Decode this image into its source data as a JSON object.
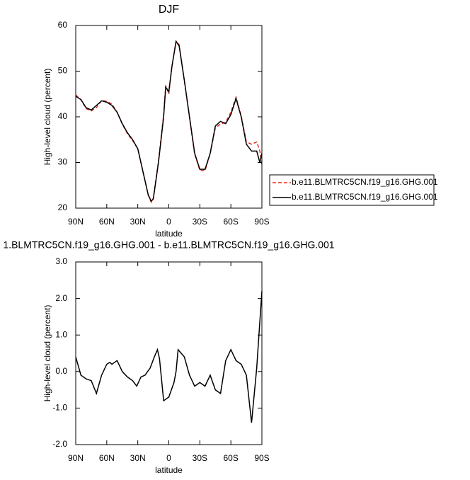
{
  "chart_data": [
    {
      "type": "line",
      "title": "DJF",
      "xlabel": "latitude",
      "ylabel": "High-level cloud (percent)",
      "x": [
        90,
        85,
        80,
        75,
        70,
        65,
        60,
        55,
        50,
        45,
        40,
        35,
        30,
        25,
        20,
        17,
        15,
        10,
        5,
        3,
        0,
        -3,
        -7,
        -10,
        -15,
        -20,
        -25,
        -30,
        -35,
        -40,
        -45,
        -50,
        -55,
        -60,
        -65,
        -70,
        -75,
        -80,
        -85,
        -88,
        -90
      ],
      "series": [
        {
          "name": "b.e11.BLMTRC5CN.f19_g16.GHG.001",
          "color": "#e8281e",
          "line_style": "dashed",
          "values": [
            44.8,
            43.7,
            41.8,
            41.3,
            42,
            43.6,
            43.4,
            42.8,
            41,
            38.4,
            36.3,
            34.8,
            33,
            28,
            22.9,
            21.3,
            22.2,
            30.3,
            40.5,
            46.9,
            45,
            51,
            56.6,
            55.8,
            47.9,
            39.8,
            31.8,
            28.3,
            28.2,
            31.9,
            37.6,
            38.4,
            38.8,
            41,
            44.3,
            40.2,
            34.5,
            34,
            34.5,
            32.5,
            29.5
          ]
        },
        {
          "name": "b.e11.BLMTRC5CN.f19_g16.GHG.001",
          "color": "#000000",
          "line_style": "solid",
          "values": [
            44.5,
            43.8,
            42,
            41.5,
            42.5,
            43.5,
            43.2,
            42.5,
            41,
            38.5,
            36.5,
            35,
            33,
            28,
            23,
            21.5,
            22,
            30,
            40,
            46.5,
            45.5,
            51,
            56.5,
            55.5,
            48,
            40,
            32,
            28.5,
            28.5,
            32,
            38,
            39,
            38.5,
            40.5,
            44,
            40,
            34,
            32.5,
            32.5,
            30,
            32
          ]
        }
      ],
      "xlim": [
        90,
        -90
      ],
      "xticks": [
        {
          "value": 90,
          "label": "90N"
        },
        {
          "value": 60,
          "label": "60N"
        },
        {
          "value": 30,
          "label": "30N"
        },
        0,
        {
          "value": -30,
          "label": "30S"
        },
        {
          "value": -60,
          "label": "60S"
        },
        {
          "value": -90,
          "label": "90S"
        }
      ],
      "ylim": [
        20,
        60
      ],
      "yticks": [
        20,
        30,
        40,
        50,
        60
      ],
      "legend": "right"
    },
    {
      "type": "line",
      "title": "1.BLMTRC5CN.f19_g16.GHG.001 - b.e11.BLMTRC5CN.f19_g16.GHG.001",
      "xlabel": "latitude",
      "ylabel": "High-level cloud (percent)",
      "x": [
        90,
        85,
        80,
        75,
        70,
        65,
        60,
        57,
        55,
        50,
        45,
        40,
        35,
        31,
        27,
        23,
        18,
        14,
        11,
        9,
        5,
        0,
        -5,
        -7,
        -9,
        -15,
        -20,
        -25,
        -30,
        -35,
        -40,
        -45,
        -50,
        -55,
        -60,
        -65,
        -70,
        -75,
        -80,
        -85,
        -90
      ],
      "color": "#000000",
      "values": [
        0.4,
        -0.1,
        -0.2,
        -0.25,
        -0.6,
        -0.1,
        0.2,
        0.25,
        0.2,
        0.3,
        0,
        -0.15,
        -0.25,
        -0.4,
        -0.15,
        -0.1,
        0.1,
        0.4,
        0.6,
        0.35,
        -0.8,
        -0.7,
        -0.3,
        0,
        0.6,
        0.4,
        -0.1,
        -0.4,
        -0.3,
        -0.4,
        -0.1,
        -0.5,
        -0.6,
        0.3,
        0.6,
        0.3,
        0.2,
        -0.1,
        -1.4,
        0.1,
        2.2
      ],
      "xlim": [
        90,
        -90
      ],
      "xticks": [
        {
          "value": 90,
          "label": "90N"
        },
        {
          "value": 60,
          "label": "60N"
        },
        {
          "value": 30,
          "label": "30N"
        },
        0,
        {
          "value": -30,
          "label": "30S"
        },
        {
          "value": -60,
          "label": "60S"
        },
        {
          "value": -90,
          "label": "90S"
        }
      ],
      "ylim": [
        -2,
        3
      ],
      "yticks": [
        {
          "value": -2,
          "label": "-2.0"
        },
        {
          "value": -1,
          "label": "-1.0"
        },
        {
          "value": 0,
          "label": "0.0"
        },
        {
          "value": 1,
          "label": "1.0"
        },
        {
          "value": 2,
          "label": "2.0"
        },
        {
          "value": 3,
          "label": "3.0"
        }
      ]
    }
  ]
}
